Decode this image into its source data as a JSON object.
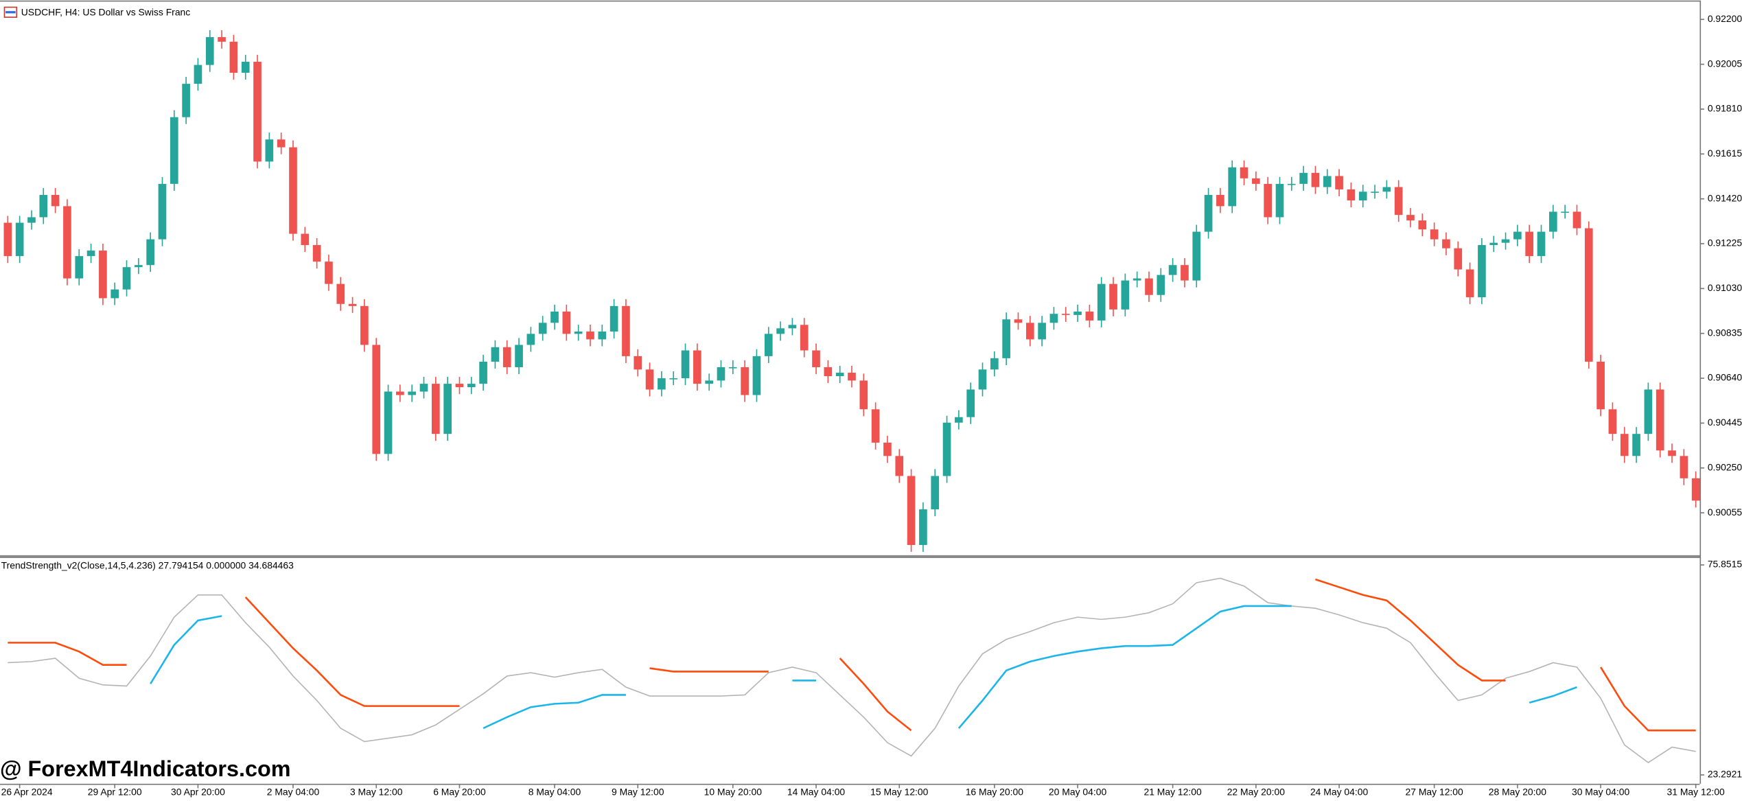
{
  "chart_data": [
    {
      "type": "candlestick",
      "title": "USDCHF, H4:  US Dollar vs Swiss Franc",
      "watermark": "@ ForexMT4Indicators.com",
      "up_color": "#26a69a",
      "down_color": "#ef5350",
      "open": [
        0.91316,
        0.91171,
        0.91316,
        0.9134,
        0.91437,
        0.91388,
        0.91074,
        0.91171,
        0.91195,
        0.90988,
        0.91026,
        0.91123,
        0.91132,
        0.91244,
        0.91485,
        0.91775,
        0.9192,
        0.92002,
        0.92123,
        0.92103,
        0.91968,
        0.92016,
        0.91582,
        0.91678,
        0.91644,
        0.91268,
        0.91219,
        0.91147,
        0.9105,
        0.90963,
        0.90954,
        0.90785,
        0.90311,
        0.90582,
        0.90567,
        0.90582,
        0.90616,
        0.90398,
        0.90616,
        0.90601,
        0.90616,
        0.90712,
        0.90775,
        0.90688,
        0.90785,
        0.90833,
        0.90881,
        0.9093,
        0.90833,
        0.90843,
        0.90809,
        0.90843,
        0.90954,
        0.90736,
        0.90678,
        0.90591,
        0.9064,
        0.9064,
        0.90761,
        0.90616,
        0.9063,
        0.90688,
        0.90688,
        0.90567,
        0.90736,
        0.90833,
        0.90857,
        0.90872,
        0.90761,
        0.90688,
        0.90649,
        0.90664,
        0.9063,
        0.90505,
        0.9036,
        0.90302,
        0.90215,
        0.89915,
        0.9007,
        0.90215,
        0.90447,
        0.90471,
        0.90591,
        0.90678,
        0.90727,
        0.90896,
        0.90881,
        0.90809,
        0.90881,
        0.9092,
        0.90915,
        0.9093,
        0.90891,
        0.9105,
        0.90939,
        0.91065,
        0.91074,
        0.91002,
        0.91089,
        0.91132,
        0.91065,
        0.91277,
        0.91437,
        0.91388,
        0.91557,
        0.91509,
        0.91485,
        0.9134,
        0.91485,
        0.91485,
        0.91533,
        0.91471,
        0.91519,
        0.91461,
        0.91413,
        0.91451,
        0.91451,
        0.91471,
        0.9135,
        0.91326,
        0.91287,
        0.91244,
        0.91205,
        0.91113,
        0.90992,
        0.91219,
        0.91229,
        0.91244,
        0.91277,
        0.91171,
        0.91277,
        0.91364,
        0.91364,
        0.91292,
        0.90712,
        0.90505,
        0.90398,
        0.90302,
        0.90398,
        0.90591,
        0.90326,
        0.90302,
        0.90205
      ],
      "high": [
        0.91346,
        0.91346,
        0.9137,
        0.91467,
        0.91467,
        0.91418,
        0.91201,
        0.91225,
        0.91225,
        0.91056,
        0.91153,
        0.91162,
        0.91274,
        0.91515,
        0.91805,
        0.9195,
        0.92032,
        0.92153,
        0.92153,
        0.92133,
        0.92046,
        0.92046,
        0.91708,
        0.91708,
        0.91674,
        0.91298,
        0.91249,
        0.91177,
        0.9108,
        0.90993,
        0.90984,
        0.90815,
        0.90612,
        0.90612,
        0.90612,
        0.90646,
        0.90646,
        0.90646,
        0.90646,
        0.90646,
        0.90742,
        0.90805,
        0.90805,
        0.90815,
        0.90863,
        0.90911,
        0.9096,
        0.9096,
        0.90873,
        0.90873,
        0.90873,
        0.90984,
        0.90984,
        0.90766,
        0.90708,
        0.9067,
        0.9067,
        0.90791,
        0.90791,
        0.9066,
        0.90718,
        0.90718,
        0.90718,
        0.90766,
        0.90863,
        0.90887,
        0.90902,
        0.90902,
        0.90791,
        0.90718,
        0.90694,
        0.90694,
        0.9066,
        0.90535,
        0.9039,
        0.90332,
        0.90245,
        0.901,
        0.90245,
        0.90477,
        0.90501,
        0.90621,
        0.90708,
        0.90757,
        0.90926,
        0.90926,
        0.90911,
        0.90911,
        0.9095,
        0.9095,
        0.9096,
        0.9096,
        0.9108,
        0.9108,
        0.91095,
        0.91104,
        0.91104,
        0.91119,
        0.91162,
        0.91162,
        0.91307,
        0.91467,
        0.91467,
        0.91587,
        0.91587,
        0.91539,
        0.91515,
        0.91515,
        0.91515,
        0.91563,
        0.91563,
        0.91549,
        0.91549,
        0.91491,
        0.91481,
        0.91481,
        0.91501,
        0.91501,
        0.9138,
        0.91356,
        0.91317,
        0.91274,
        0.91235,
        0.91143,
        0.91249,
        0.91259,
        0.91274,
        0.91307,
        0.91307,
        0.91307,
        0.91394,
        0.91394,
        0.91394,
        0.91322,
        0.90742,
        0.90535,
        0.90428,
        0.90428,
        0.90621,
        0.90621,
        0.90356,
        0.90332,
        0.90235
      ],
      "low": [
        0.91141,
        0.91141,
        0.91286,
        0.9131,
        0.91358,
        0.91044,
        0.91044,
        0.91141,
        0.90958,
        0.90958,
        0.90996,
        0.91093,
        0.91102,
        0.91214,
        0.91455,
        0.91745,
        0.9189,
        0.91972,
        0.92073,
        0.91938,
        0.91938,
        0.91552,
        0.91552,
        0.91614,
        0.91238,
        0.91189,
        0.91117,
        0.9102,
        0.90933,
        0.90924,
        0.90755,
        0.90281,
        0.90281,
        0.90537,
        0.90537,
        0.90552,
        0.90368,
        0.90368,
        0.90571,
        0.90571,
        0.90586,
        0.90682,
        0.90658,
        0.90658,
        0.90755,
        0.90803,
        0.90851,
        0.90803,
        0.90803,
        0.90779,
        0.90779,
        0.90813,
        0.90706,
        0.90648,
        0.90561,
        0.90561,
        0.9061,
        0.9061,
        0.90586,
        0.90586,
        0.906,
        0.90658,
        0.90537,
        0.90537,
        0.90706,
        0.90803,
        0.90827,
        0.90731,
        0.90658,
        0.90619,
        0.90619,
        0.906,
        0.90475,
        0.9033,
        0.90272,
        0.90185,
        0.89885,
        0.89885,
        0.9004,
        0.90185,
        0.90417,
        0.90441,
        0.90561,
        0.90648,
        0.90697,
        0.90851,
        0.90779,
        0.90779,
        0.90851,
        0.90885,
        0.90885,
        0.90861,
        0.90861,
        0.90909,
        0.90909,
        0.91035,
        0.90972,
        0.90972,
        0.91059,
        0.91035,
        0.91035,
        0.91247,
        0.91358,
        0.91358,
        0.91479,
        0.91455,
        0.9131,
        0.9131,
        0.91455,
        0.91455,
        0.91441,
        0.91441,
        0.91431,
        0.91383,
        0.91383,
        0.91421,
        0.91421,
        0.9132,
        0.91296,
        0.91257,
        0.91214,
        0.91175,
        0.91083,
        0.90962,
        0.90962,
        0.91189,
        0.91199,
        0.91214,
        0.91141,
        0.91141,
        0.91247,
        0.91334,
        0.91262,
        0.90682,
        0.90475,
        0.90368,
        0.90272,
        0.90272,
        0.90368,
        0.90296,
        0.90272,
        0.90175,
        0.90078
      ],
      "close": [
        0.91171,
        0.91316,
        0.9134,
        0.91437,
        0.91388,
        0.91074,
        0.91171,
        0.91195,
        0.90988,
        0.91026,
        0.91123,
        0.91132,
        0.91244,
        0.91485,
        0.91775,
        0.9192,
        0.92002,
        0.92123,
        0.92103,
        0.91968,
        0.92016,
        0.91582,
        0.91678,
        0.91644,
        0.91268,
        0.91219,
        0.91147,
        0.9105,
        0.90963,
        0.90954,
        0.90785,
        0.90311,
        0.90582,
        0.90567,
        0.90582,
        0.90616,
        0.90398,
        0.90616,
        0.90601,
        0.90616,
        0.90712,
        0.90775,
        0.90688,
        0.90785,
        0.90833,
        0.90881,
        0.9093,
        0.90833,
        0.90843,
        0.90809,
        0.90843,
        0.90954,
        0.90736,
        0.90678,
        0.90591,
        0.9064,
        0.9064,
        0.90761,
        0.90616,
        0.9063,
        0.90688,
        0.90688,
        0.90567,
        0.90736,
        0.90833,
        0.90857,
        0.90872,
        0.90761,
        0.90688,
        0.90649,
        0.90664,
        0.9063,
        0.90505,
        0.9036,
        0.90302,
        0.90215,
        0.89915,
        0.9007,
        0.90215,
        0.90447,
        0.90471,
        0.90591,
        0.90678,
        0.90727,
        0.90896,
        0.90881,
        0.90809,
        0.90881,
        0.9092,
        0.90915,
        0.9093,
        0.90891,
        0.9105,
        0.90939,
        0.91065,
        0.91074,
        0.91002,
        0.91089,
        0.91132,
        0.91065,
        0.91277,
        0.91437,
        0.91388,
        0.91557,
        0.91509,
        0.91485,
        0.9134,
        0.91485,
        0.91485,
        0.91533,
        0.91471,
        0.91519,
        0.91461,
        0.91413,
        0.91451,
        0.91451,
        0.91471,
        0.9135,
        0.91326,
        0.91287,
        0.91244,
        0.91205,
        0.91113,
        0.90992,
        0.91219,
        0.91229,
        0.91244,
        0.91277,
        0.91171,
        0.91277,
        0.91364,
        0.91364,
        0.91292,
        0.90712,
        0.90505,
        0.90398,
        0.90302,
        0.90398,
        0.90591,
        0.90326,
        0.90302,
        0.90205,
        0.90108
      ],
      "ylim": [
        0.89867,
        0.92282
      ],
      "yticks": [
        {
          "value": 0.922,
          "label": "0.92200"
        },
        {
          "value": 0.92005,
          "label": "0.92005"
        },
        {
          "value": 0.9181,
          "label": "0.91810"
        },
        {
          "value": 0.91615,
          "label": "0.91615"
        },
        {
          "value": 0.9142,
          "label": "0.91420"
        },
        {
          "value": 0.91225,
          "label": "0.91225"
        },
        {
          "value": 0.9103,
          "label": "0.91030"
        },
        {
          "value": 0.90835,
          "label": "0.90835"
        },
        {
          "value": 0.9064,
          "label": "0.90640"
        },
        {
          "value": 0.90445,
          "label": "0.90445"
        },
        {
          "value": 0.9025,
          "label": "0.90250"
        },
        {
          "value": 0.90055,
          "label": "0.90055"
        }
      ],
      "xticks": [
        {
          "value": 1,
          "label": "26 Apr 2024"
        },
        {
          "value": 9,
          "label": "29 Apr 12:00"
        },
        {
          "value": 16,
          "label": "30 Apr 20:00"
        },
        {
          "value": 24,
          "label": "2 May 04:00"
        },
        {
          "value": 31,
          "label": "3 May 12:00"
        },
        {
          "value": 38,
          "label": "6 May 20:00"
        },
        {
          "value": 46,
          "label": "8 May 04:00"
        },
        {
          "value": 53,
          "label": "9 May 12:00"
        },
        {
          "value": 61,
          "label": "10 May 20:00"
        },
        {
          "value": 68,
          "label": "14 May 04:00"
        },
        {
          "value": 75,
          "label": "15 May 12:00"
        },
        {
          "value": 83,
          "label": "16 May 20:00"
        },
        {
          "value": 90,
          "label": "20 May 04:00"
        },
        {
          "value": 98,
          "label": "21 May 12:00"
        },
        {
          "value": 105,
          "label": "22 May 20:00"
        },
        {
          "value": 112,
          "label": "24 May 04:00"
        },
        {
          "value": 120,
          "label": "27 May 12:00"
        },
        {
          "value": 127,
          "label": "28 May 20:00"
        },
        {
          "value": 134,
          "label": "30 May 04:00"
        },
        {
          "value": 142,
          "label": "31 May 12:00"
        }
      ]
    },
    {
      "type": "line",
      "title": "TrendStrength_v2(Close,14,5,4.236) 27.794154 0.000000 34.684463",
      "x": [
        0,
        2,
        4,
        6,
        8,
        10,
        12,
        14,
        16,
        18,
        20,
        22,
        24,
        26,
        28,
        30,
        32,
        34,
        36,
        38,
        40,
        42,
        44,
        46,
        48,
        50,
        52,
        54,
        56,
        58,
        60,
        62,
        64,
        66,
        68,
        70,
        72,
        74,
        76,
        78,
        80,
        82,
        84,
        86,
        88,
        90,
        92,
        94,
        96,
        98,
        100,
        102,
        104,
        106,
        108,
        110,
        112,
        114,
        116,
        118,
        120,
        122,
        124,
        126,
        128,
        130,
        132,
        134,
        136,
        138,
        140,
        142
      ],
      "series": [
        {
          "color": "#b4b4b4",
          "values": [
            51.39,
            51.66,
            52.5,
            47.49,
            45.83,
            45.55,
            53.05,
            62.78,
            68.34,
            68.34,
            61.39,
            55.28,
            48.05,
            41.93,
            34.98,
            31.65,
            32.48,
            33.32,
            35.82,
            39.71,
            43.6,
            48.05,
            48.88,
            47.77,
            48.88,
            49.72,
            45.27,
            43.05,
            43.05,
            43.05,
            43.05,
            43.32,
            48.88,
            50.27,
            48.88,
            43.32,
            37.76,
            31.37,
            28.03,
            34.98,
            45.55,
            53.61,
            57.22,
            59.17,
            61.39,
            62.78,
            62.23,
            62.78,
            63.9,
            66.12,
            71.4,
            72.51,
            70.57,
            66.4,
            65.56,
            65.01,
            63.34,
            61.39,
            60.0,
            56.39,
            48.88,
            41.93,
            43.32,
            47.49,
            49.16,
            51.39,
            50.27,
            42.49,
            30.81,
            26.37,
            30.26,
            29.15
          ]
        },
        {
          "color": "#1cb5e8",
          "values": [
            null,
            null,
            null,
            null,
            null,
            null,
            46.1,
            55.83,
            61.95,
            63.06,
            null,
            null,
            null,
            null,
            null,
            null,
            null,
            null,
            null,
            null,
            34.98,
            37.76,
            40.27,
            41.1,
            41.38,
            43.32,
            43.32,
            null,
            null,
            null,
            null,
            null,
            null,
            46.94,
            46.94,
            null,
            null,
            null,
            null,
            null,
            34.98,
            41.93,
            49.44,
            51.66,
            53.05,
            54.17,
            55.0,
            55.56,
            55.56,
            55.83,
            60.0,
            64.17,
            65.56,
            65.56,
            65.56,
            null,
            null,
            null,
            null,
            null,
            null,
            null,
            null,
            null,
            41.38,
            43.05,
            45.27,
            null,
            null,
            null,
            null,
            null
          ]
        },
        {
          "color": "#ff4a0a",
          "values": [
            56.39,
            56.39,
            56.39,
            54.17,
            50.83,
            50.83,
            null,
            null,
            null,
            null,
            67.79,
            61.39,
            55.0,
            49.44,
            43.32,
            40.54,
            40.54,
            40.54,
            40.54,
            40.54,
            null,
            null,
            null,
            null,
            null,
            null,
            null,
            50.0,
            49.16,
            49.16,
            49.16,
            49.16,
            49.16,
            null,
            null,
            52.5,
            46.1,
            39.15,
            34.43,
            null,
            null,
            null,
            null,
            null,
            null,
            null,
            null,
            null,
            null,
            null,
            null,
            null,
            null,
            null,
            null,
            72.24,
            70.29,
            68.34,
            66.95,
            61.95,
            56.39,
            50.83,
            46.94,
            46.94,
            null,
            null,
            null,
            50.27,
            40.54,
            34.43,
            34.43,
            34.43
          ]
        }
      ],
      "ylim": [
        21.07,
        77.52
      ],
      "yticks": [
        75.85159,
        23.29213
      ]
    }
  ]
}
